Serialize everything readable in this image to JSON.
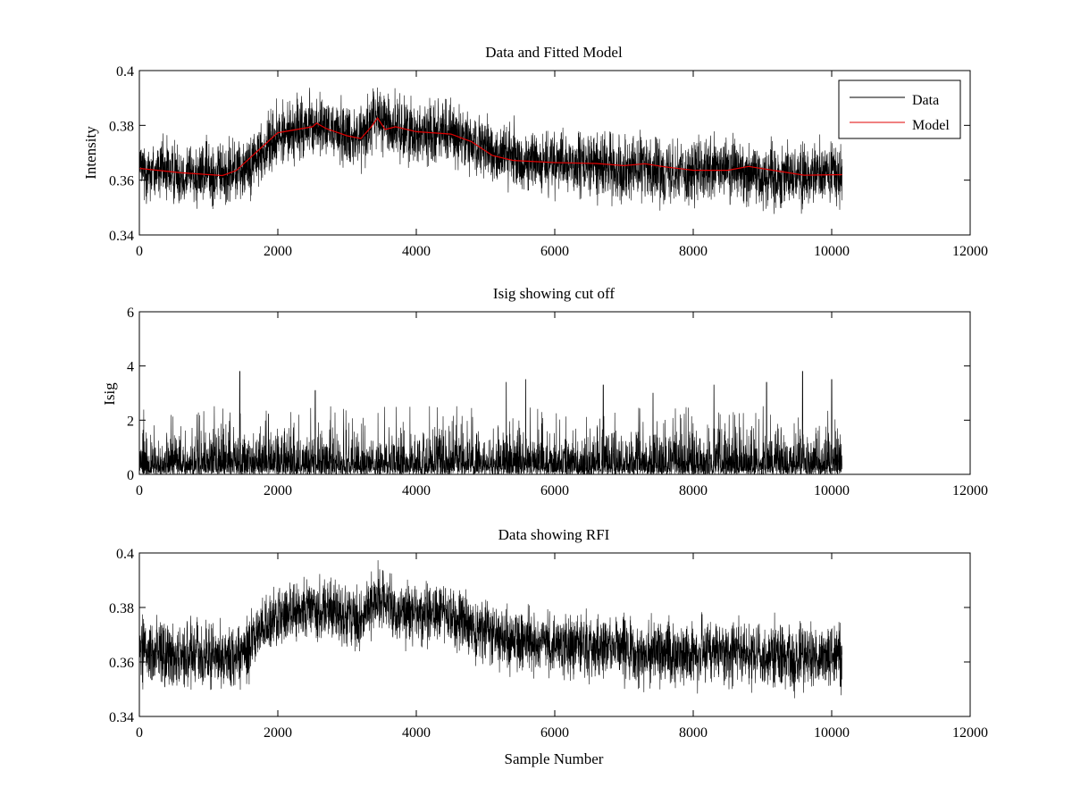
{
  "chart_data": [
    {
      "type": "line",
      "title": "Data and Fitted Model",
      "xlabel": "",
      "ylabel": "Intensity",
      "xlim": [
        0,
        12000
      ],
      "ylim": [
        0.34,
        0.4
      ],
      "xticks": [
        0,
        2000,
        4000,
        6000,
        8000,
        10000,
        12000
      ],
      "xtick_labels": [
        "0",
        "2000",
        "4000",
        "6000",
        "8000",
        "10000",
        "12000"
      ],
      "yticks": [
        0.34,
        0.36,
        0.38,
        0.4
      ],
      "ytick_labels": [
        "0.34",
        "0.36",
        "0.38",
        "0.4"
      ],
      "grid": false,
      "legend": {
        "placement": "top-right",
        "entries": [
          {
            "label": "Data",
            "color": "#000000"
          },
          {
            "label": "Model",
            "color": "#e00000"
          }
        ]
      },
      "series": [
        {
          "name": "Data",
          "color": "#000000",
          "x_range": [
            0,
            10150
          ],
          "noise_amplitude": 0.0055,
          "spike_max": 0.0125,
          "envelope_x": [
            0,
            1200,
            1500,
            2000,
            2500,
            3000,
            3200,
            3400,
            3700,
            4000,
            4500,
            5000,
            5500,
            6000,
            7000,
            8000,
            8500,
            9000,
            10150
          ],
          "envelope_y": [
            0.364,
            0.362,
            0.364,
            0.376,
            0.38,
            0.377,
            0.376,
            0.383,
            0.379,
            0.378,
            0.377,
            0.371,
            0.367,
            0.366,
            0.365,
            0.363,
            0.364,
            0.362,
            0.362
          ]
        },
        {
          "name": "Model",
          "color": "#e00000",
          "x": [
            0,
            600,
            1200,
            1400,
            1700,
            2000,
            2500,
            2560,
            2700,
            3000,
            3200,
            3350,
            3440,
            3550,
            3700,
            4000,
            4500,
            4800,
            5100,
            5400,
            6000,
            6600,
            7000,
            7300,
            7600,
            8000,
            8500,
            8800,
            9100,
            9600,
            10150
          ],
          "y": [
            0.3643,
            0.3627,
            0.3617,
            0.3635,
            0.3705,
            0.3773,
            0.3795,
            0.3808,
            0.3788,
            0.3762,
            0.3752,
            0.3795,
            0.3827,
            0.3785,
            0.3795,
            0.3777,
            0.3768,
            0.374,
            0.369,
            0.3672,
            0.3664,
            0.3661,
            0.3653,
            0.366,
            0.3648,
            0.3636,
            0.3636,
            0.365,
            0.3638,
            0.3618,
            0.362
          ]
        }
      ]
    },
    {
      "type": "line",
      "title": "Isig showing cut off",
      "xlabel": "",
      "ylabel": "Isig",
      "xlim": [
        0,
        12000
      ],
      "ylim": [
        0,
        6
      ],
      "xticks": [
        0,
        2000,
        4000,
        6000,
        8000,
        10000,
        12000
      ],
      "xtick_labels": [
        "0",
        "2000",
        "4000",
        "6000",
        "8000",
        "10000",
        "12000"
      ],
      "yticks": [
        0,
        2,
        4,
        6
      ],
      "ytick_labels": [
        "0",
        "2",
        "4",
        "6"
      ],
      "grid": false,
      "series": [
        {
          "color": "#000000",
          "x_range": [
            0,
            10150
          ],
          "typical_max": 1.8,
          "peak_max": 3.8,
          "peaks": [
            [
              1450,
              3.8
            ],
            [
              2540,
              3.1
            ],
            [
              5300,
              3.4
            ],
            [
              5580,
              3.5
            ],
            [
              6700,
              3.3
            ],
            [
              7420,
              3.0
            ],
            [
              8300,
              3.3
            ],
            [
              9060,
              3.4
            ],
            [
              9580,
              3.8
            ],
            [
              10000,
              3.5
            ]
          ]
        }
      ]
    },
    {
      "type": "line",
      "title": "Data showing RFI",
      "xlabel": "Sample Number",
      "ylabel": "",
      "xlim": [
        0,
        12000
      ],
      "ylim": [
        0.34,
        0.4
      ],
      "xticks": [
        0,
        2000,
        4000,
        6000,
        8000,
        10000,
        12000
      ],
      "xtick_labels": [
        "0",
        "2000",
        "4000",
        "6000",
        "8000",
        "10000",
        "12000"
      ],
      "yticks": [
        0.34,
        0.36,
        0.38,
        0.4
      ],
      "ytick_labels": [
        "0.34",
        "0.36",
        "0.38",
        "0.4"
      ],
      "grid": false,
      "series": [
        {
          "color": "#000000",
          "x_range": [
            0,
            10150
          ],
          "noise_amplitude": 0.0055,
          "spike_max": 0.0125,
          "envelope_x": [
            0,
            1200,
            1500,
            2000,
            2500,
            3000,
            3200,
            3400,
            3700,
            4000,
            4500,
            5000,
            5500,
            6000,
            7000,
            8000,
            8500,
            9000,
            10150
          ],
          "envelope_y": [
            0.364,
            0.362,
            0.364,
            0.376,
            0.38,
            0.377,
            0.376,
            0.383,
            0.379,
            0.378,
            0.377,
            0.371,
            0.367,
            0.366,
            0.365,
            0.363,
            0.364,
            0.362,
            0.362
          ]
        }
      ]
    }
  ]
}
